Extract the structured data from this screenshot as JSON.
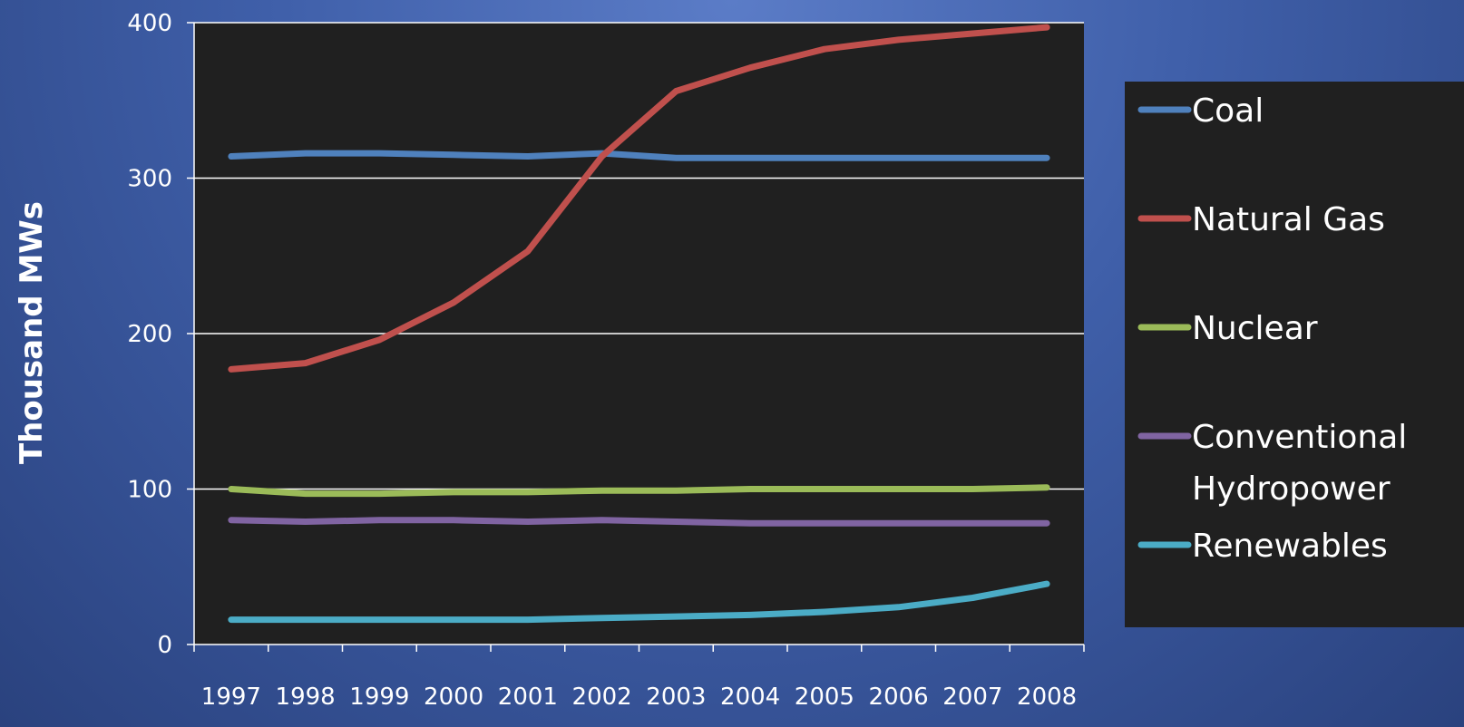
{
  "chart_data": {
    "type": "line",
    "title": "",
    "xlabel": "",
    "ylabel": "Thousand MWs",
    "ylim": [
      0,
      400
    ],
    "yticks": [
      "0",
      "100",
      "200",
      "300",
      "400"
    ],
    "categories": [
      "1997",
      "1998",
      "1999",
      "2000",
      "2001",
      "2002",
      "2003",
      "2004",
      "2005",
      "2006",
      "2007",
      "2008"
    ],
    "grid": "horizontal",
    "legend_position": "right",
    "series": [
      {
        "name": "Coal",
        "color": "#4f81bd",
        "values": [
          314,
          316,
          316,
          315,
          314,
          316,
          313,
          313,
          313,
          313,
          313,
          313
        ]
      },
      {
        "name": "Natural Gas",
        "color": "#c0504d",
        "values": [
          177,
          181,
          196,
          220,
          253,
          314,
          356,
          371,
          383,
          389,
          393,
          397
        ]
      },
      {
        "name": "Nuclear",
        "color": "#9bbb59",
        "values": [
          100,
          97,
          97,
          98,
          98,
          99,
          99,
          100,
          100,
          100,
          100,
          101
        ]
      },
      {
        "name": "Conventional Hydropower",
        "legend_lines": [
          "Conventional",
          "Hydropower"
        ],
        "color": "#8064a2",
        "values": [
          80,
          79,
          80,
          80,
          79,
          80,
          79,
          78,
          78,
          78,
          78,
          78
        ]
      },
      {
        "name": "Renewables",
        "color": "#4bacc6",
        "values": [
          16,
          16,
          16,
          16,
          16,
          17,
          18,
          19,
          21,
          24,
          30,
          39
        ]
      }
    ]
  }
}
